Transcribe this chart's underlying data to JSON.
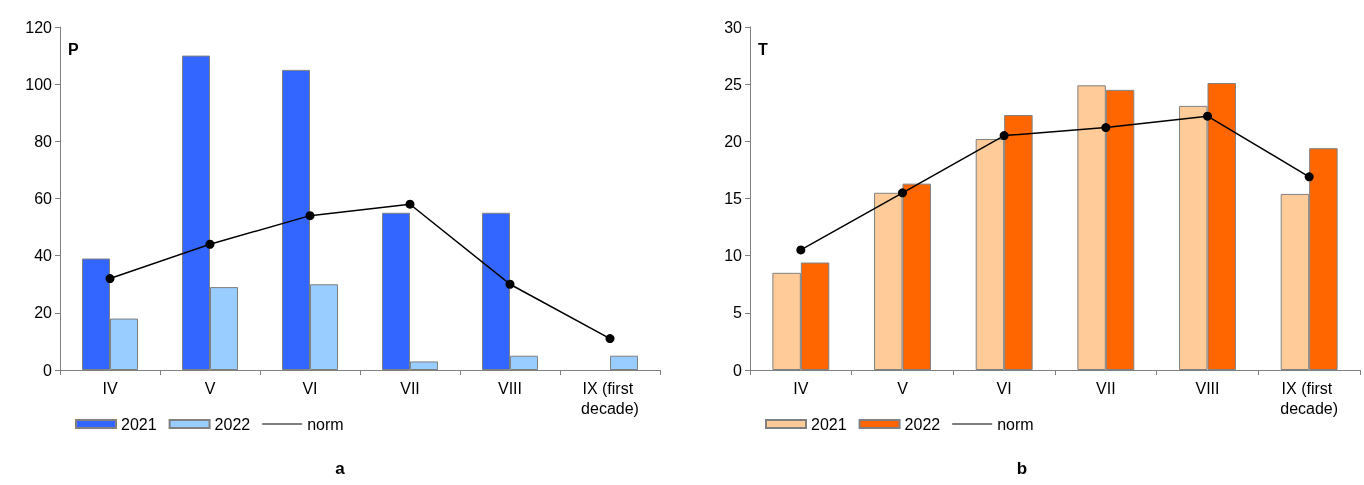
{
  "chart_data": [
    {
      "type": "bar",
      "ylabel": "P",
      "categories": [
        "IV",
        "V",
        "VI",
        "VII",
        "VIII",
        "IX (first decade)"
      ],
      "ylim": [
        0,
        120
      ],
      "yticks": [
        0,
        20,
        40,
        60,
        80,
        100,
        120
      ],
      "grid": false,
      "legend": "bottom left",
      "annotations": [
        "a"
      ],
      "series": [
        {
          "name": "2021",
          "color": "#3366ff",
          "values": [
            39,
            110,
            105,
            55,
            55,
            null
          ]
        },
        {
          "name": "2022",
          "color": "#99ccff",
          "values": [
            18,
            29,
            30,
            3,
            5,
            5
          ]
        },
        {
          "name": "norm",
          "type": "line",
          "color": "#000000",
          "marker": "circle",
          "values": [
            32,
            44,
            54,
            58,
            30,
            11
          ]
        }
      ]
    },
    {
      "type": "bar",
      "ylabel": "T",
      "categories": [
        "IV",
        "V",
        "VI",
        "VII",
        "VIII",
        "IX (first decade)"
      ],
      "ylim": [
        0,
        30
      ],
      "yticks": [
        0,
        5,
        10,
        15,
        20,
        25,
        30
      ],
      "grid": false,
      "legend": "bottom left",
      "annotations": [
        "b"
      ],
      "series": [
        {
          "name": "2021",
          "color": "#ffcc99",
          "values": [
            8.5,
            15.5,
            20.2,
            24.9,
            23.1,
            15.4
          ]
        },
        {
          "name": "2022",
          "color": "#ff6600",
          "values": [
            9.4,
            16.3,
            22.3,
            24.5,
            25.1,
            19.4
          ]
        },
        {
          "name": "norm",
          "type": "line",
          "color": "#000000",
          "marker": "circle",
          "values": [
            10.5,
            15.5,
            20.5,
            21.2,
            22.2,
            16.9
          ]
        }
      ]
    }
  ]
}
